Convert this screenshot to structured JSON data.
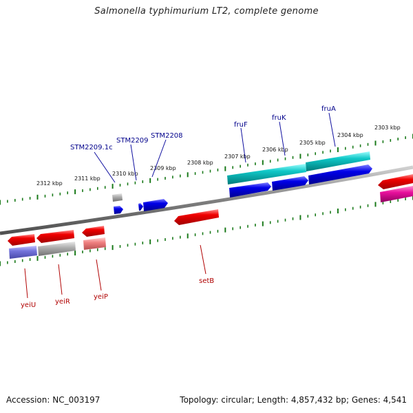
{
  "title": "Salmonella typhimurium LT2, complete genome",
  "footer": {
    "accession_label": "Accession:",
    "accession": "NC_003197",
    "topology_label": "Topology:",
    "topology": "circular",
    "length_label": "Length:",
    "length": "4,857,432 bp",
    "genes_label": "Genes:",
    "genes": "4,541"
  },
  "colors": {
    "backbone": "#808080",
    "tick": "#1a7a1a",
    "forward_label": "#00008b",
    "reverse_label": "#b00000",
    "red": "#e00000",
    "blue": "#0000e0",
    "cyan": "#10c0c0",
    "gray": "#a8a8a8",
    "lavender": "#7070d8",
    "pink": "#f08080",
    "magenta": "#e0109a"
  },
  "kbp_ticks": [
    {
      "label": "2312 kbp"
    },
    {
      "label": "2311 kbp"
    },
    {
      "label": "2310 kbp"
    },
    {
      "label": "2309 kbp"
    },
    {
      "label": "2308 kbp"
    },
    {
      "label": "2307 kbp"
    },
    {
      "label": "2306 kbp"
    },
    {
      "label": "2305 kbp"
    },
    {
      "label": "2304 kbp"
    },
    {
      "label": "2303 kbp"
    }
  ],
  "forward_labels": [
    "STM2209.1c",
    "STM2209",
    "STM2208",
    "fruF",
    "fruK",
    "fruA"
  ],
  "reverse_labels": [
    "yeiU",
    "yeiR",
    "yeiP",
    "setB"
  ]
}
